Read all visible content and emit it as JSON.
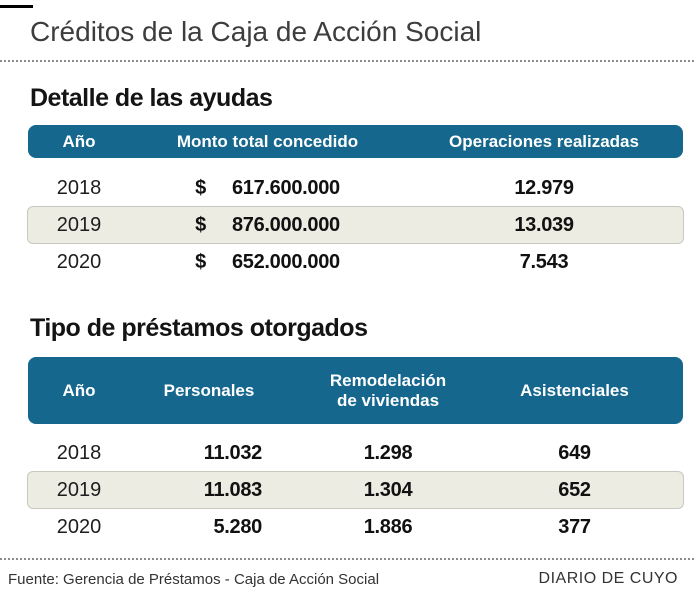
{
  "title": "Créditos de la Caja de Acción Social",
  "colors": {
    "header_bar": "#15678d",
    "highlight_row_bg": "#edece3",
    "highlight_row_border": "#c9c8c0",
    "title_gray": "#3d3d3d"
  },
  "sections": [
    {
      "heading": "Detalle de las ayudas",
      "columns": [
        "Año",
        "Monto total concedido",
        "Operaciones realizadas"
      ],
      "rows": [
        {
          "year": "2018",
          "currency": "$",
          "amount": "617.600.000",
          "operations": "12.979",
          "highlighted": false
        },
        {
          "year": "2019",
          "currency": "$",
          "amount": "876.000.000",
          "operations": "13.039",
          "highlighted": true
        },
        {
          "year": "2020",
          "currency": "$",
          "amount": "652.000.000",
          "operations": "7.543",
          "highlighted": false
        }
      ]
    },
    {
      "heading": "Tipo de préstamos otorgados",
      "columns": [
        "Año",
        "Personales",
        "Remodelación de viviendas",
        "Asistenciales"
      ],
      "rows": [
        {
          "year": "2018",
          "personales": "11.032",
          "remodelacion": "1.298",
          "asistenciales": "649",
          "highlighted": false
        },
        {
          "year": "2019",
          "personales": "11.083",
          "remodelacion": "1.304",
          "asistenciales": "652",
          "highlighted": true
        },
        {
          "year": "2020",
          "personales": "5.280",
          "remodelacion": "1.886",
          "asistenciales": "377",
          "highlighted": false
        }
      ]
    }
  ],
  "footer": {
    "source": "Fuente: Gerencia de Préstamos - Caja de Acción Social",
    "brand": "DIARIO DE CUYO"
  },
  "chart_data": [
    {
      "type": "table",
      "title": "Detalle de las ayudas",
      "columns": [
        "Año",
        "Monto total concedido",
        "Operaciones realizadas"
      ],
      "rows": [
        [
          "2018",
          "$ 617.600.000",
          "12.979"
        ],
        [
          "2019",
          "$ 876.000.000",
          "13.039"
        ],
        [
          "2020",
          "$ 652.000.000",
          "7.543"
        ]
      ]
    },
    {
      "type": "table",
      "title": "Tipo de préstamos otorgados",
      "columns": [
        "Año",
        "Personales",
        "Remodelación de viviendas",
        "Asistenciales"
      ],
      "rows": [
        [
          "2018",
          "11.032",
          "1.298",
          "649"
        ],
        [
          "2019",
          "11.083",
          "1.304",
          "652"
        ],
        [
          "2020",
          "5.280",
          "1.886",
          "377"
        ]
      ]
    }
  ]
}
